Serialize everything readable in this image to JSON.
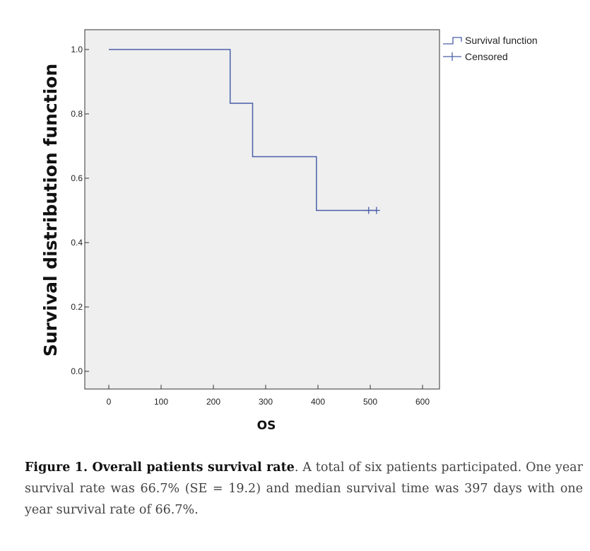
{
  "chart_data": {
    "type": "line",
    "xlabel": "OS",
    "ylabel": "Survival distribution function",
    "xlim": [
      0,
      600
    ],
    "ylim": [
      0,
      1.0
    ],
    "x_ticks": [
      0,
      100,
      200,
      300,
      400,
      500,
      600
    ],
    "y_ticks": [
      0.0,
      0.2,
      0.4,
      0.6,
      0.8,
      1.0
    ],
    "x_tick_labels": [
      "0",
      "100",
      "200",
      "300",
      "400",
      "500",
      "600"
    ],
    "y_tick_labels": [
      "0.0",
      "0.2",
      "0.4",
      "0.6",
      "0.8",
      "1.0"
    ],
    "grid": false,
    "legend_position": "top-right-outside",
    "colors": {
      "line": "#4a5fa8",
      "plot_background": "#efefef"
    },
    "series": [
      {
        "name": "Survival function",
        "step": true,
        "x": [
          0,
          232,
          232,
          275,
          275,
          397,
          397,
          513
        ],
        "y": [
          1.0,
          1.0,
          0.833,
          0.833,
          0.667,
          0.667,
          0.5,
          0.5
        ]
      },
      {
        "name": "Censored",
        "x": [
          497,
          512
        ],
        "y": [
          0.5,
          0.5
        ]
      }
    ]
  },
  "caption": {
    "title": "Figure 1. Overall patients survival rate",
    "text": ". A total of six patients participated. One year survival rate was 66.7% (SE = 19.2) and median survival time was 397 days with one year survival rate of 66.7%."
  }
}
